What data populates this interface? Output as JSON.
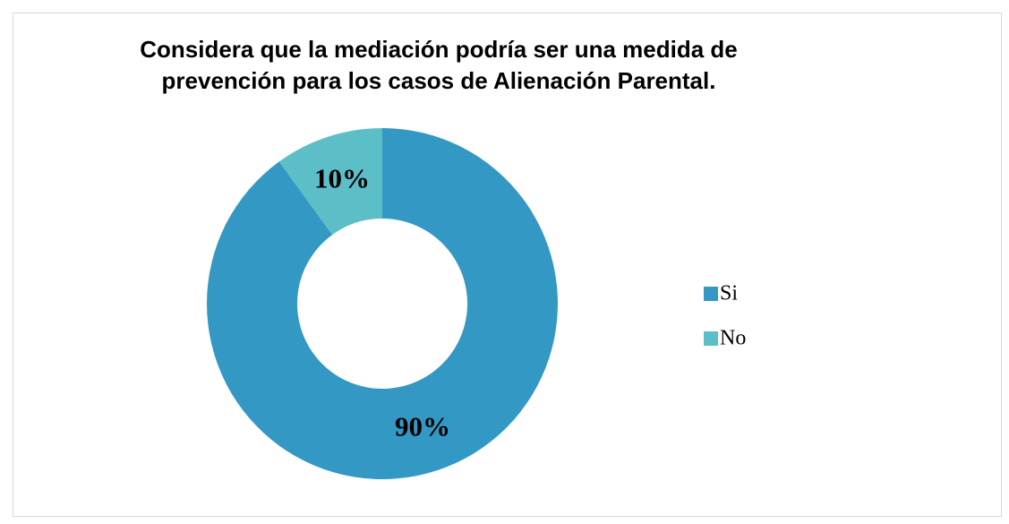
{
  "chart_data": {
    "type": "donut",
    "title": "Considera que la mediación podría ser una medida de prevención para los casos de Alienación Parental.",
    "categories": [
      "Si",
      "No"
    ],
    "values": [
      90,
      10
    ],
    "value_labels": [
      "90%",
      "10%"
    ],
    "colors": [
      "#3399c4",
      "#5cbfc8"
    ],
    "legend": "right"
  }
}
